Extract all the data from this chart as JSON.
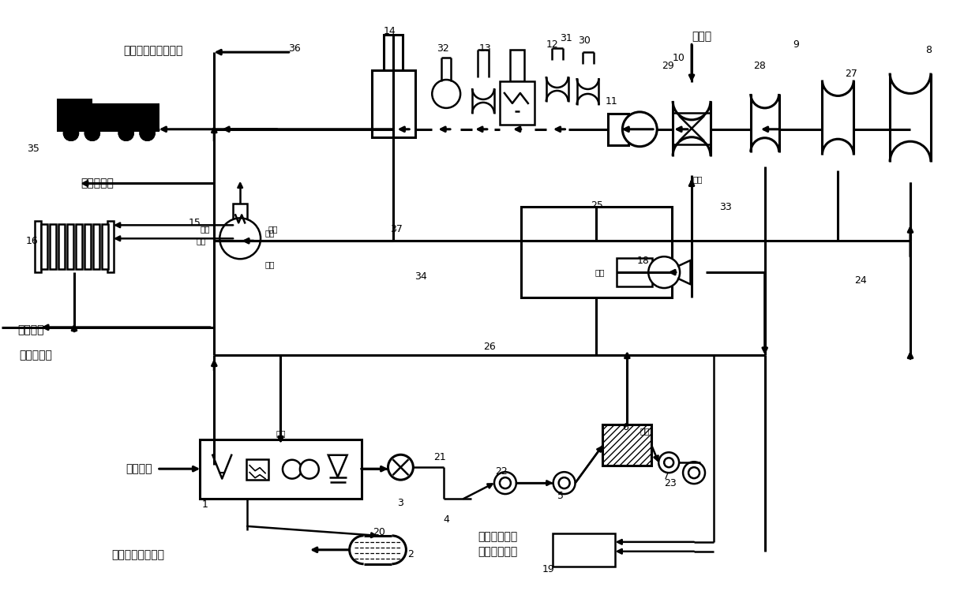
{
  "bg_color": "#ffffff",
  "lc": "#000000",
  "product_h_organic": "产品：富氢有机液体",
  "product_h2": "产品：氢气",
  "product_elec": "产品：电",
  "byproduct_heat": "副产品：热",
  "byproduct_biodiesel": "副产品：生物柴油",
  "byproduct_compost": "副产品：堆肥",
  "byproduct_sewage": "副产品：污水",
  "kitchen_waste": "餐厨垃圾",
  "steam": "水蒸气",
  "waste_heat": "废热",
  "product_heat": "产热"
}
